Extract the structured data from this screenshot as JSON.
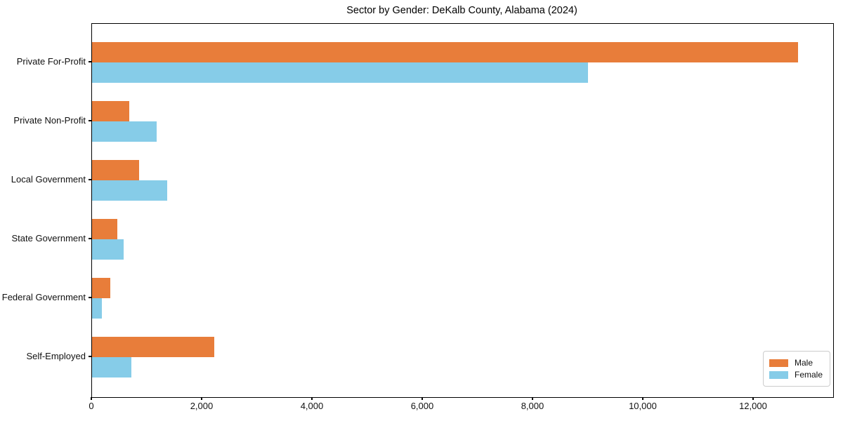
{
  "chart_data": {
    "type": "bar",
    "orientation": "horizontal",
    "title": "Sector by Gender: DeKalb County, Alabama (2024)",
    "categories": [
      "Private For-Profit",
      "Private Non-Profit",
      "Local Government",
      "State Government",
      "Federal Government",
      "Self-Employed"
    ],
    "series": [
      {
        "name": "Male",
        "color": "#E87D3A",
        "values": [
          12800,
          670,
          850,
          460,
          330,
          2220
        ]
      },
      {
        "name": "Female",
        "color": "#86CCE8",
        "values": [
          9000,
          1170,
          1360,
          570,
          175,
          710
        ]
      }
    ],
    "xlabel": "",
    "ylabel": "",
    "xlim": [
      0,
      13440
    ],
    "xticks": {
      "values": [
        0,
        2000,
        4000,
        6000,
        8000,
        10000,
        12000
      ],
      "labels": [
        "0",
        "2,000",
        "4,000",
        "6,000",
        "8,000",
        "10,000",
        "12,000"
      ]
    },
    "legend": {
      "position": "lower right",
      "entries": [
        "Male",
        "Female"
      ]
    },
    "grid": false,
    "spine_color": "#000000",
    "background": "#ffffff"
  }
}
